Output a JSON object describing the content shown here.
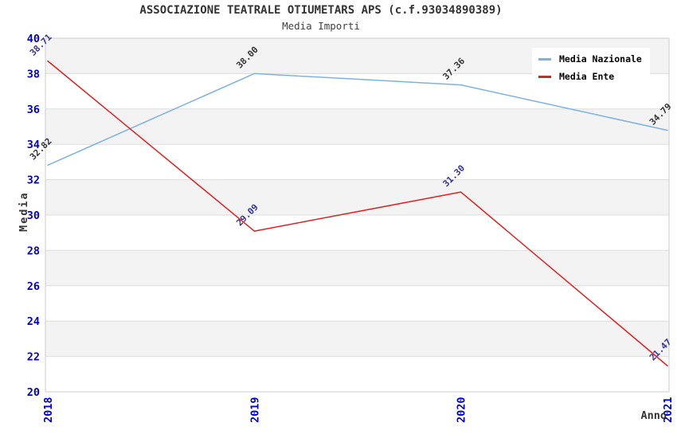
{
  "chart": {
    "title": "ASSOCIAZIONE TEATRALE OTIUMETARS APS (c.f.93034890389)",
    "subtitle": "Media Importi"
  },
  "chart_data": {
    "type": "line",
    "x": [
      "2018",
      "2019",
      "2020",
      "2021"
    ],
    "xlabel": "Anno",
    "ylabel": "Media",
    "ylim": [
      20,
      40
    ],
    "ytick_step": 2,
    "grid": true,
    "banded_background": true,
    "legend_position": "top-right",
    "series": [
      {
        "name": "Media Nazionale",
        "color": "#7CB2E3",
        "label_color": "#333333",
        "values": [
          32.82,
          38.0,
          37.36,
          34.79
        ],
        "labels": [
          "32.82",
          "38.00",
          "37.36",
          "34.79"
        ]
      },
      {
        "name": "Media Ente",
        "color": "#E02020",
        "label_color": "#333399",
        "values": [
          38.71,
          29.09,
          31.3,
          21.47
        ],
        "labels": [
          "38.71",
          "29.09",
          "31.30",
          "21.47"
        ]
      }
    ]
  },
  "colors": {
    "page_background": "#FFFFFF",
    "band": "#F3F3F3",
    "gridline": "#DDDDDD",
    "plot_border": "#CCCCCC",
    "axis_tick_label": "#0000CC",
    "axis_title": "#333333",
    "title_text": "#333333"
  }
}
